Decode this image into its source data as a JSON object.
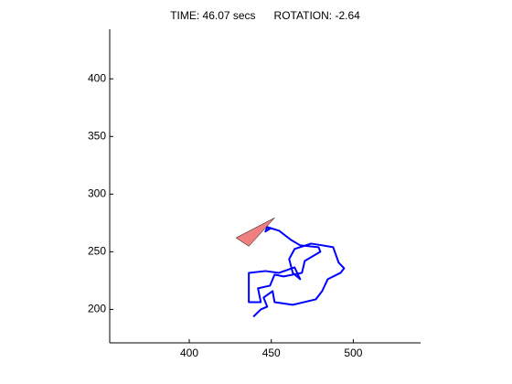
{
  "chart_data": {
    "type": "line",
    "title": "TIME: 46.07 secs      ROTATION: -2.64",
    "xlim": [
      351.5,
      541
    ],
    "ylim": [
      171,
      443
    ],
    "xticks": [
      400,
      450,
      500
    ],
    "yticks": [
      200,
      250,
      300,
      350,
      400
    ],
    "series": [
      {
        "color": "#0000ff",
        "x": [
          439.1,
          443.6,
          447.5,
          445.3,
          450.8,
          452,
          463.1,
          477.1,
          481,
          484.4,
          492.2,
          494.4,
          491.1,
          487.7,
          481,
          474.3,
          464.2,
          460.9,
          463.1,
          467.6,
          464.2,
          454.7,
          446.4,
          436.3,
          436.3,
          443.6,
          441.9,
          449.2,
          452,
          457.5,
          468.7,
          470.4,
          479.9,
          478.8,
          467.6,
          462,
          454.7,
          447.5,
          446.4,
          449.7
        ],
        "values": [
          193.7,
          200,
          202.4,
          210.3,
          215.9,
          206.3,
          204,
          208.7,
          215.9,
          226.2,
          231.7,
          235.7,
          240.5,
          254,
          255.6,
          257.1,
          252.4,
          243.7,
          231.7,
          226.2,
          236.5,
          231.7,
          233.3,
          231.7,
          206.3,
          206.3,
          218.3,
          220.6,
          230.2,
          228.6,
          231.7,
          242.1,
          250,
          254,
          255.6,
          260.3,
          268.3,
          271.4,
          267.5,
          270.6
        ]
      }
    ],
    "robot": {
      "color": "#f08080",
      "x": [
        428.5,
        452,
        436.3
      ],
      "y": [
        262.1,
        279.4,
        254.8
      ]
    }
  }
}
